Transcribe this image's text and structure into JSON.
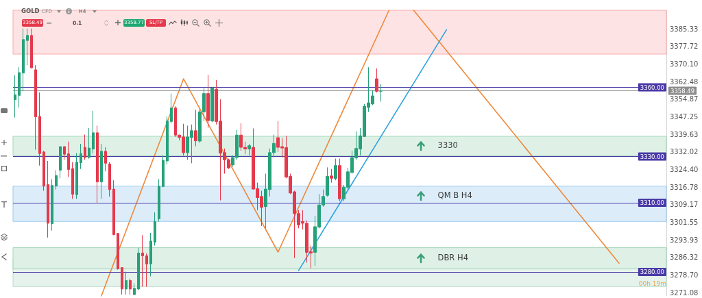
{
  "chart_data": {
    "type": "candlestick",
    "title": "GOLD",
    "subtitle": "CFD",
    "annotations": [
      "H4",
      "3358.49",
      "0.1",
      "3358.77",
      "SL/TP",
      "00h 19m"
    ],
    "categories": [
      null,
      null,
      null,
      null,
      null,
      null,
      null,
      null,
      null,
      null,
      null,
      null,
      null,
      null,
      null,
      null,
      null,
      null,
      null,
      null,
      null,
      null,
      null,
      null,
      null,
      null,
      null,
      null,
      null,
      null,
      null,
      null,
      null,
      null,
      null,
      null,
      null,
      null,
      null,
      null,
      null,
      null,
      null,
      null,
      null,
      null,
      null,
      null,
      null,
      null,
      null,
      null,
      null,
      null,
      null,
      null,
      null,
      null,
      null,
      null,
      null,
      null,
      null,
      null,
      null,
      null,
      null,
      null,
      null,
      null,
      null,
      null,
      null,
      null,
      null,
      null,
      null,
      null,
      null,
      null,
      null,
      null,
      null,
      null,
      null,
      null,
      null,
      null,
      null,
      null,
      null,
      null,
      null,
      null,
      null,
      null,
      null,
      null,
      null,
      null,
      null,
      null,
      null,
      null,
      null,
      null,
      null,
      null,
      null,
      null,
      null,
      null,
      null,
      null,
      null,
      null,
      null,
      null,
      null,
      null,
      null,
      null,
      null,
      null,
      null,
      null,
      null,
      null,
      null,
      null,
      null,
      null,
      null,
      null,
      null,
      null,
      null,
      null,
      null,
      null,
      null,
      null,
      null,
      null,
      null,
      null,
      null,
      null,
      null,
      null,
      null,
      null,
      null,
      null,
      null,
      null,
      null,
      null,
      null
    ],
    "ohlc": [
      [
        3354.6,
        3365.2,
        3346.9,
        3356.8
      ],
      [
        3356.5,
        3368.7,
        3351.3,
        3366.4
      ],
      [
        3366.2,
        3385.5,
        3358.3,
        3380.7
      ],
      [
        3380.3,
        3385.5,
        3369.6,
        3382.5
      ],
      [
        3382.5,
        3385.5,
        3368.2,
        3368.5
      ],
      [
        3367.6,
        3369.6,
        3333.0,
        3347.2
      ],
      [
        3347.4,
        3357.8,
        3326.1,
        3331.3
      ],
      [
        3332.0,
        3332.5,
        3315.2,
        3317.2
      ],
      [
        3317.9,
        3328.1,
        3294.9,
        3301.1
      ],
      [
        3300.9,
        3320.2,
        3297.9,
        3317.5
      ],
      [
        3317.2,
        3324.1,
        3315.7,
        3321.8
      ],
      [
        3324.1,
        3334.5,
        3320.6,
        3334.3
      ],
      [
        3334.3,
        3334.5,
        3328.6,
        3331.0
      ],
      [
        3331.2,
        3336.5,
        3321.1,
        3324.4
      ],
      [
        3324.8,
        3327.6,
        3311.7,
        3313.7
      ],
      [
        3313.5,
        3331.5,
        3311.7,
        3327.6
      ],
      [
        3327.3,
        3335.5,
        3324.6,
        3331.3
      ],
      [
        3334.0,
        3339.5,
        3328.6,
        3329.6
      ],
      [
        3329.6,
        3342.4,
        3329.1,
        3333.7
      ],
      [
        3333.3,
        3349.8,
        3331.5,
        3340.3
      ],
      [
        3340.3,
        3343.4,
        3309.8,
        3319.0
      ],
      [
        3319.0,
        3335.5,
        3311.7,
        3332.3
      ],
      [
        3332.3,
        3334.0,
        3323.6,
        3327.1
      ],
      [
        3326.8,
        3327.6,
        3312.7,
        3315.7
      ],
      [
        3315.9,
        3319.7,
        3295.9,
        3296.2
      ],
      [
        3296.7,
        3296.9,
        3281.0,
        3281.4
      ],
      [
        3281.9,
        3281.9,
        3270.2,
        3272.6
      ],
      [
        3272.6,
        3280.1,
        3270.2,
        3276.3
      ],
      [
        3276.3,
        3277.1,
        3270.2,
        3272.6
      ],
      [
        3270.2,
        3275.1,
        3269.9,
        3272.9
      ],
      [
        3272.6,
        3290.5,
        3272.2,
        3288.2
      ],
      [
        3288.2,
        3295.9,
        3273.6,
        3287.0
      ],
      [
        3287.0,
        3288.0,
        3273.6,
        3283.5
      ],
      [
        3283.5,
        3296.9,
        3278.1,
        3293.4
      ],
      [
        3292.9,
        3305.8,
        3291.4,
        3301.8
      ],
      [
        3303.0,
        3320.2,
        3301.8,
        3317.2
      ],
      [
        3317.0,
        3330.5,
        3316.7,
        3328.4
      ],
      [
        3328.1,
        3347.4,
        3326.6,
        3345.4
      ],
      [
        3345.2,
        3357.3,
        3344.4,
        3351.1
      ],
      [
        3351.1,
        3351.8,
        3338.5,
        3339.3
      ],
      [
        3339.3,
        3339.5,
        3337.0,
        3338.3
      ],
      [
        3338.5,
        3344.2,
        3330.5,
        3331.7
      ],
      [
        3331.7,
        3343.4,
        3328.6,
        3338.5
      ],
      [
        3338.3,
        3343.9,
        3327.1,
        3341.2
      ],
      [
        3341.2,
        3350.3,
        3334.5,
        3336.8
      ],
      [
        3336.7,
        3350.8,
        3336.0,
        3349.4
      ],
      [
        3349.4,
        3359.7,
        3345.4,
        3357.3
      ],
      [
        3357.3,
        3365.4,
        3342.4,
        3345.6
      ],
      [
        3345.4,
        3360.2,
        3344.9,
        3359.7
      ],
      [
        3359.2,
        3363.2,
        3343.9,
        3345.2
      ],
      [
        3345.4,
        3354.8,
        3311.0,
        3331.5
      ],
      [
        3331.7,
        3333.5,
        3322.6,
        3328.6
      ],
      [
        3328.6,
        3329.1,
        3324.6,
        3325.1
      ],
      [
        3326.4,
        3330.5,
        3325.6,
        3329.6
      ],
      [
        3329.6,
        3341.6,
        3328.6,
        3339.3
      ],
      [
        3339.3,
        3344.4,
        3332.5,
        3334.0
      ],
      [
        3334.0,
        3336.5,
        3331.0,
        3333.3
      ],
      [
        3333.3,
        3335.5,
        3330.5,
        3334.7
      ],
      [
        3334.0,
        3342.2,
        3315.7,
        3315.9
      ],
      [
        3316.1,
        3318.7,
        3306.8,
        3312.2
      ],
      [
        3312.7,
        3315.2,
        3299.9,
        3308.0
      ],
      [
        3308.3,
        3322.6,
        3298.9,
        3315.9
      ],
      [
        3315.7,
        3333.5,
        3312.7,
        3331.7
      ],
      [
        3331.7,
        3339.5,
        3329.6,
        3335.7
      ],
      [
        3338.2,
        3345.4,
        3332.0,
        3334.0
      ],
      [
        3334.3,
        3338.0,
        3329.6,
        3333.7
      ],
      [
        3333.9,
        3339.0,
        3320.6,
        3321.1
      ],
      [
        3321.4,
        3322.6,
        3313.7,
        3314.2
      ],
      [
        3314.7,
        3315.2,
        3286.0,
        3305.3
      ],
      [
        3305.3,
        3306.8,
        3298.9,
        3300.4
      ],
      [
        3301.8,
        3306.8,
        3298.4,
        3301.1
      ],
      [
        3301.1,
        3302.3,
        3284.0,
        3288.5
      ],
      [
        3288.8,
        3291.4,
        3281.6,
        3288.2
      ],
      [
        3288.5,
        3304.3,
        3282.6,
        3299.6
      ],
      [
        3299.4,
        3313.7,
        3298.9,
        3309.0
      ],
      [
        3309.0,
        3315.7,
        3308.3,
        3312.7
      ],
      [
        3313.2,
        3325.3,
        3312.7,
        3321.4
      ],
      [
        3321.6,
        3324.6,
        3318.7,
        3320.6
      ],
      [
        3320.5,
        3329.1,
        3319.7,
        3326.1
      ],
      [
        3326.1,
        3329.1,
        3310.7,
        3311.7
      ],
      [
        3311.7,
        3317.7,
        3310.7,
        3316.7
      ],
      [
        3316.7,
        3325.1,
        3315.7,
        3323.4
      ],
      [
        3323.1,
        3332.5,
        3322.6,
        3329.6
      ],
      [
        3329.4,
        3341.0,
        3328.6,
        3333.5
      ],
      [
        3333.3,
        3342.4,
        3330.5,
        3339.0
      ],
      [
        3338.7,
        3352.8,
        3338.5,
        3351.8
      ],
      [
        3351.3,
        3368.7,
        3349.4,
        3353.3
      ],
      [
        3352.8,
        3358.8,
        3352.3,
        3356.3
      ],
      [
        3363.7,
        3368.2,
        3357.8,
        3358.3
      ],
      [
        3358.3,
        3361.4,
        3353.8,
        3358.5
      ],
      null,
      null,
      null,
      null,
      null,
      null,
      null,
      null,
      null,
      null,
      null,
      null,
      null,
      null,
      null,
      null,
      null,
      null,
      null,
      null,
      null,
      null,
      null,
      null,
      null,
      null,
      null,
      null,
      null,
      null,
      null,
      null,
      null,
      null,
      null,
      null,
      null,
      null,
      null,
      null,
      null,
      null,
      null,
      null,
      null,
      null,
      null,
      null,
      null,
      null,
      null,
      null,
      null,
      null,
      null,
      null,
      null,
      null,
      null,
      null,
      null,
      null,
      null,
      null,
      null,
      null,
      null,
      null,
      null
    ],
    "colors": [
      "#26a17a",
      "#26a17a",
      "#26a17a",
      "#26a17a",
      "#e5394c",
      "#e5394c",
      "#e5394c",
      "#e5394c",
      "#e5394c",
      "#26a17a",
      "#26a17a",
      "#26a17a",
      "#e5394c",
      "#e5394c",
      "#e5394c",
      "#26a17a",
      "#26a17a",
      "#e5394c",
      "#26a17a",
      "#26a17a",
      "#e5394c",
      "#26a17a",
      "#e5394c",
      "#e5394c",
      "#e5394c",
      "#e5394c",
      "#e5394c",
      "#26a17a",
      "#e5394c",
      "#26a17a",
      "#26a17a",
      "#e5394c",
      "#e5394c",
      "#26a17a",
      "#26a17a",
      "#26a17a",
      "#26a17a",
      "#26a17a",
      "#26a17a",
      "#e5394c",
      "#e5394c",
      "#e5394c",
      "#26a17a",
      "#26a17a",
      "#e5394c",
      "#26a17a",
      "#26a17a",
      "#e5394c",
      "#26a17a",
      "#e5394c",
      "#e5394c",
      "#e5394c",
      "#e5394c",
      "#26a17a",
      "#26a17a",
      "#e5394c",
      "#e5394c",
      "#26a17a",
      "#e5394c",
      "#e5394c",
      "#e5394c",
      "#26a17a",
      "#26a17a",
      "#26a17a",
      "#e5394c",
      "#e5394c",
      "#e5394c",
      "#e5394c",
      "#e5394c",
      "#e5394c",
      "#e5394c",
      "#e5394c",
      "#e5394c",
      "#26a17a",
      "#26a17a",
      "#26a17a",
      "#26a17a",
      "#e5394c",
      "#26a17a",
      "#e5394c",
      "#26a17a",
      "#26a17a",
      "#26a17a",
      "#26a17a",
      "#26a17a",
      "#26a17a",
      "#26a17a",
      "#26a17a",
      "#e5394c",
      "#26a17a",
      null,
      null,
      null,
      null,
      null,
      null,
      null,
      null,
      null,
      null,
      null,
      null,
      null,
      null,
      null,
      null,
      null,
      null,
      null,
      null,
      null,
      null,
      null,
      null,
      null,
      null,
      null,
      null,
      null,
      null,
      null,
      null,
      null,
      null,
      null,
      null,
      null,
      null,
      null,
      null,
      null,
      null,
      null,
      null,
      null,
      null,
      null,
      null,
      null,
      null,
      null,
      null,
      null,
      null,
      null,
      null,
      null,
      null,
      null,
      null,
      null,
      null,
      null,
      null,
      null,
      null,
      null,
      null,
      null
    ],
    "series": [
      {
        "type": "line",
        "color": "#f0883a",
        "values": [
          null,
          null,
          null,
          null,
          null,
          null,
          null,
          null,
          null,
          null,
          null,
          null,
          null,
          null,
          null,
          null,
          null,
          null,
          null,
          null,
          null,
          3269.6,
          null,
          null,
          null,
          null,
          null,
          null,
          null,
          null,
          null,
          null,
          null,
          null,
          null,
          null,
          null,
          null,
          null,
          null,
          null,
          3363.7,
          null,
          null,
          null,
          null,
          null,
          null,
          null,
          null,
          null,
          null,
          null,
          null,
          null,
          null,
          null,
          null,
          null,
          null,
          null,
          null,
          null,
          null,
          3288.6,
          null,
          null,
          null,
          null,
          null,
          null,
          null,
          null,
          null,
          null,
          null,
          null,
          null,
          null,
          null,
          null,
          null,
          null,
          null,
          null,
          null,
          null,
          null,
          null,
          null,
          null,
          3393.4,
          null,
          null,
          null,
          null,
          null,
          null,
          null,
          null,
          null,
          null,
          null,
          null,
          null,
          null,
          null,
          null,
          null,
          null,
          null,
          null,
          null,
          null,
          null,
          null,
          null,
          null,
          null,
          null,
          null,
          null,
          null,
          null,
          null,
          null,
          null,
          null,
          null,
          null,
          null,
          null,
          null,
          null,
          null,
          null,
          null,
          null,
          null,
          null,
          null,
          null,
          null,
          null,
          null,
          null,
          null,
          null,
          null,
          null,
          null,
          null,
          null,
          null,
          null,
          null,
          null,
          null,
          null
        ]
      },
      {
        "type": "line",
        "color": "#f0883a",
        "values": [
          null,
          null,
          null,
          null,
          null,
          null,
          null,
          null,
          null,
          null,
          null,
          null,
          null,
          null,
          null,
          null,
          null,
          null,
          null,
          null,
          null,
          null,
          null,
          null,
          null,
          null,
          null,
          null,
          null,
          null,
          null,
          null,
          null,
          null,
          null,
          null,
          null,
          null,
          null,
          null,
          null,
          null,
          null,
          null,
          null,
          null,
          null,
          null,
          null,
          null,
          null,
          null,
          null,
          null,
          null,
          null,
          null,
          null,
          null,
          null,
          null,
          null,
          null,
          null,
          null,
          null,
          null,
          null,
          null,
          null,
          null,
          null,
          null,
          null,
          null,
          null,
          null,
          null,
          null,
          null,
          null,
          null,
          null,
          null,
          null,
          null,
          null,
          null,
          null,
          null,
          null,
          null,
          null,
          null,
          null,
          null,
          null,
          3393.4,
          null,
          null,
          null,
          null,
          null,
          null,
          null,
          null,
          null,
          null,
          null,
          null,
          null,
          null,
          null,
          null,
          null,
          null,
          null,
          null,
          null,
          null,
          null,
          null,
          null,
          null,
          null,
          null,
          null,
          null,
          null,
          null,
          null,
          null,
          null,
          null,
          null,
          null,
          null,
          null,
          null,
          null,
          null,
          null,
          null,
          null,
          null,
          null,
          null,
          3283.8,
          null,
          null,
          null,
          null,
          null,
          null,
          null,
          null,
          null,
          null,
          null
        ]
      },
      {
        "type": "line",
        "color": "#2fa3e0",
        "values": [
          null,
          null,
          null,
          null,
          null,
          null,
          null,
          null,
          null,
          null,
          null,
          null,
          null,
          null,
          null,
          null,
          null,
          null,
          null,
          null,
          null,
          null,
          null,
          null,
          null,
          null,
          null,
          null,
          null,
          null,
          null,
          null,
          null,
          null,
          null,
          null,
          null,
          null,
          null,
          null,
          null,
          null,
          null,
          null,
          null,
          null,
          null,
          null,
          null,
          null,
          null,
          null,
          null,
          null,
          null,
          null,
          null,
          null,
          null,
          null,
          null,
          null,
          null,
          null,
          null,
          null,
          null,
          null,
          null,
          3280.6,
          null,
          null,
          null,
          null,
          null,
          null,
          null,
          null,
          null,
          null,
          null,
          null,
          null,
          null,
          null,
          null,
          null,
          null,
          null,
          null,
          null,
          null,
          null,
          null,
          null,
          null,
          null,
          null,
          null,
          null,
          null,
          null,
          null,
          null,
          null,
          3385.0,
          null,
          null,
          null,
          null,
          null,
          null,
          null,
          null,
          null,
          null,
          null,
          null,
          null,
          null,
          null,
          null,
          null,
          null,
          null,
          null,
          null,
          null,
          null,
          null,
          null,
          null,
          null,
          null,
          null,
          null,
          null,
          null,
          null,
          null,
          null,
          null,
          null,
          null,
          null,
          null,
          null,
          null,
          null,
          null,
          null,
          null,
          null,
          null,
          null,
          null,
          null,
          null,
          null
        ]
      }
    ],
    "ylim": [
      3269.6,
      3393.4
    ],
    "yticks": [
      3271.08,
      {
        "value": 3278.7,
        "label": "3278.70"
      },
      3286.32,
      3293.93,
      3301.55,
      3309.17,
      3316.78,
      {
        "value": 3324.4,
        "label": "3324.40"
      },
      3332.02,
      3339.63,
      3347.25,
      3354.87,
      3362.48,
      {
        "value": 3370.1,
        "label": "3370.10"
      },
      3377.72,
      3385.33
    ],
    "tick_labels": "y",
    "ref_lines": [
      {
        "axis": "y",
        "value": 3360,
        "label": "3360.00",
        "color": "#4a3aa7"
      },
      {
        "axis": "y",
        "value": 3358.49,
        "label": "3358.49",
        "color": "#8d8d8d"
      },
      {
        "axis": "y",
        "value": 3330,
        "label": "3330.00",
        "color": "#4a3aa7"
      },
      {
        "axis": "y",
        "value": 3310,
        "label": "3310.00",
        "color": "#4a3aa7"
      },
      {
        "axis": "y",
        "value": 3280,
        "label": "3280.00",
        "color": "#4a3aa7"
      }
    ],
    "bands": [
      {
        "axis": "y",
        "from": 3374.4,
        "to": 3393.4,
        "color": "#fde3e3"
      },
      {
        "axis": "y",
        "from": 3330.4,
        "to": 3338.8,
        "label": "3330",
        "color": "#dff1e7"
      },
      {
        "axis": "y",
        "from": 3301.9,
        "to": 3317.2,
        "label": "QM B H4",
        "color": "#dcedf9"
      },
      {
        "axis": "y",
        "from": 3273.7,
        "to": 3285.7,
        "color": "#e6f3ec"
      },
      {
        "axis": "y",
        "from": 3281.4,
        "to": 3290.5,
        "label": "DBR H4",
        "color": "#dff1e7"
      }
    ]
  }
}
